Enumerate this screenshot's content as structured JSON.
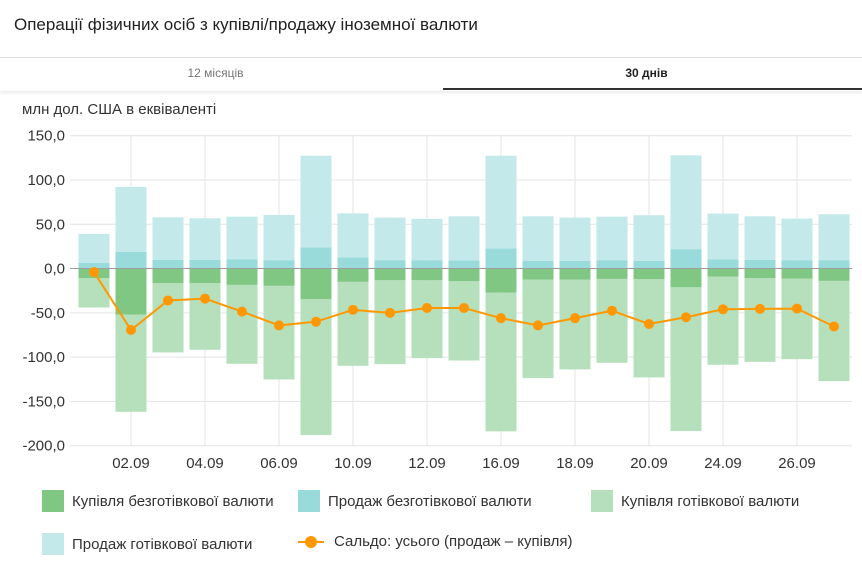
{
  "header": {
    "title": "Операції фізичних осіб з купівлі/продажу іноземної валюти"
  },
  "tabs": [
    {
      "label": "12 місяців",
      "active": false
    },
    {
      "label": "30 днів",
      "active": true
    }
  ],
  "chart_data": {
    "type": "bar",
    "subtitle": "млн дол. США в еквіваленті",
    "stacked": true,
    "ylim": [
      -200,
      150
    ],
    "yticks": [
      "150,0",
      "100,0",
      "50,0",
      "0,0",
      "-50,0",
      "-100,0",
      "-150,0",
      "-200,0"
    ],
    "grid": true,
    "legend_position": "bottom",
    "categories": [
      "",
      "02.09",
      "",
      "04.09",
      "",
      "06.09",
      "",
      "10.09",
      "",
      "12.09",
      "",
      "16.09",
      "",
      "18.09",
      "",
      "20.09",
      "",
      "24.09",
      "",
      "26.09",
      ""
    ],
    "series": [
      {
        "name": "Купівля безготівкової валюти",
        "type": "bar",
        "color": "#81c784",
        "values": [
          -10.9,
          -51.9,
          -16.5,
          -16.5,
          -18.4,
          -19.5,
          -34.6,
          -15.0,
          -13.2,
          -13.2,
          -14.3,
          -27.1,
          -12.4,
          -12.4,
          -11.7,
          -12.0,
          -21.1,
          -9.0,
          -10.9,
          -11.3,
          -13.9
        ]
      },
      {
        "name": "Продаж безготівкової валюти",
        "type": "bar",
        "color": "#99dada",
        "values": [
          6.4,
          18.8,
          9.8,
          9.8,
          10.5,
          9.4,
          23.7,
          12.4,
          9.4,
          9.4,
          9.0,
          22.6,
          8.6,
          8.6,
          9.4,
          8.6,
          21.8,
          10.2,
          9.8,
          9.4,
          9.4
        ]
      },
      {
        "name": "Купівля готівкової валюти",
        "type": "bar",
        "color": "#b6e0bc",
        "values": [
          -33.1,
          -109.8,
          -78.2,
          -75.2,
          -89.1,
          -105.7,
          -153.4,
          -94.8,
          -94.7,
          -87.9,
          -89.5,
          -156.7,
          -111.3,
          -101.5,
          -94.7,
          -110.9,
          -162.4,
          -99.6,
          -94.4,
          -91.0,
          -113.2
        ]
      },
      {
        "name": "Продаж готівкової валюти",
        "type": "bar",
        "color": "#c3e9ea",
        "values": [
          32.7,
          73.3,
          48.1,
          47.0,
          48.1,
          51.1,
          103.7,
          50.0,
          48.1,
          46.6,
          50.0,
          104.8,
          50.4,
          48.9,
          49.2,
          51.6,
          106.0,
          51.8,
          49.2,
          47.0,
          51.9
        ]
      },
      {
        "name": "Сальдо: усього (продаж – купівля)",
        "type": "line",
        "color": "#ff9800",
        "values": [
          -4.0,
          -69.4,
          -36.0,
          -34.0,
          -48.6,
          -64.2,
          -60.0,
          -46.6,
          -50.0,
          -44.5,
          -44.5,
          -56.0,
          -64.2,
          -56.0,
          -47.6,
          -62.6,
          -55.0,
          -46.0,
          -45.5,
          -45.2,
          -65.4
        ]
      }
    ]
  }
}
